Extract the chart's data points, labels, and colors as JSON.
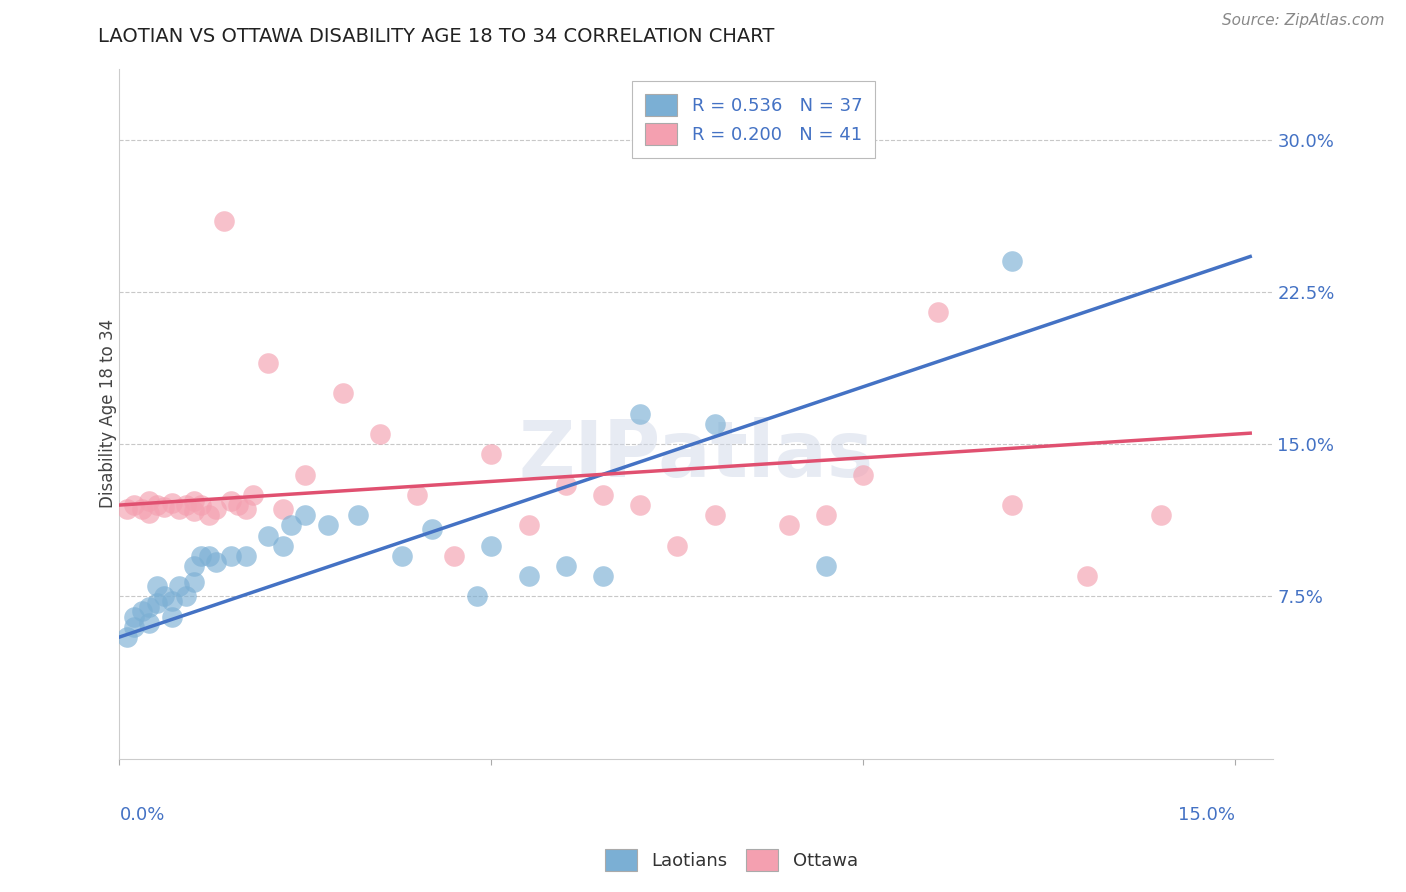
{
  "title": "LAOTIAN VS OTTAWA DISABILITY AGE 18 TO 34 CORRELATION CHART",
  "source": "Source: ZipAtlas.com",
  "ylabel": "Disability Age 18 to 34",
  "y_ticks": [
    0.075,
    0.15,
    0.225,
    0.3
  ],
  "y_tick_labels": [
    "7.5%",
    "15.0%",
    "22.5%",
    "30.0%"
  ],
  "xlim": [
    0.0,
    0.155
  ],
  "ylim": [
    -0.005,
    0.335
  ],
  "blue_color": "#7BAFD4",
  "pink_color": "#F4A0B0",
  "line_blue": "#4472C4",
  "line_pink": "#E05070",
  "watermark_text": "ZIPatlas",
  "legend_label1": "R = 0.536   N = 37",
  "legend_label2": "R = 0.200   N = 41",
  "bottom_legend1": "Laotians",
  "bottom_legend2": "Ottawa",
  "laotians_x": [
    0.001,
    0.002,
    0.002,
    0.003,
    0.004,
    0.004,
    0.005,
    0.005,
    0.006,
    0.007,
    0.007,
    0.008,
    0.009,
    0.01,
    0.01,
    0.011,
    0.012,
    0.013,
    0.015,
    0.017,
    0.02,
    0.022,
    0.023,
    0.025,
    0.028,
    0.032,
    0.038,
    0.042,
    0.048,
    0.05,
    0.055,
    0.06,
    0.065,
    0.07,
    0.08,
    0.095,
    0.12
  ],
  "laotians_y": [
    0.055,
    0.06,
    0.065,
    0.068,
    0.062,
    0.07,
    0.072,
    0.08,
    0.075,
    0.065,
    0.073,
    0.08,
    0.075,
    0.082,
    0.09,
    0.095,
    0.095,
    0.092,
    0.095,
    0.095,
    0.105,
    0.1,
    0.11,
    0.115,
    0.11,
    0.115,
    0.095,
    0.108,
    0.075,
    0.1,
    0.085,
    0.09,
    0.085,
    0.165,
    0.16,
    0.09,
    0.24
  ],
  "ottawa_x": [
    0.001,
    0.002,
    0.003,
    0.004,
    0.004,
    0.005,
    0.006,
    0.007,
    0.008,
    0.009,
    0.01,
    0.01,
    0.011,
    0.012,
    0.013,
    0.014,
    0.015,
    0.016,
    0.017,
    0.018,
    0.02,
    0.022,
    0.025,
    0.03,
    0.035,
    0.04,
    0.045,
    0.05,
    0.055,
    0.06,
    0.065,
    0.07,
    0.075,
    0.08,
    0.09,
    0.095,
    0.1,
    0.11,
    0.12,
    0.13,
    0.14
  ],
  "ottawa_y": [
    0.118,
    0.12,
    0.118,
    0.122,
    0.116,
    0.12,
    0.119,
    0.121,
    0.118,
    0.12,
    0.122,
    0.117,
    0.12,
    0.115,
    0.118,
    0.26,
    0.122,
    0.12,
    0.118,
    0.125,
    0.19,
    0.118,
    0.135,
    0.175,
    0.155,
    0.125,
    0.095,
    0.145,
    0.11,
    0.13,
    0.125,
    0.12,
    0.1,
    0.115,
    0.11,
    0.115,
    0.135,
    0.215,
    0.12,
    0.085,
    0.115
  ]
}
